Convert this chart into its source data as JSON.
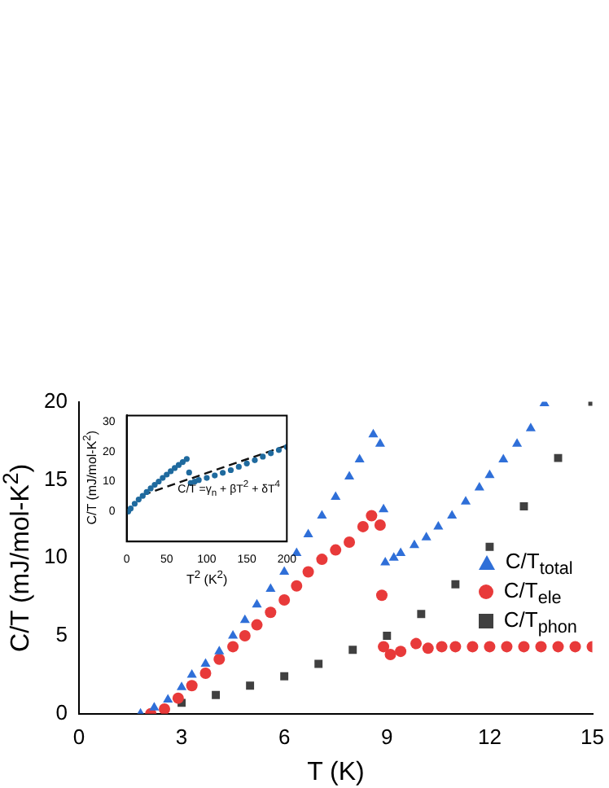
{
  "chart_data": [
    {
      "type": "scatter",
      "xlabel": "T (K)",
      "ylabel": "C/T (mJ/mol-K$^{2}$)",
      "xlim": [
        0,
        15
      ],
      "xticks": [
        0,
        3,
        6,
        9,
        12,
        15
      ],
      "ylim": [
        0,
        20
      ],
      "yticks": [
        0,
        5,
        10,
        15,
        20
      ],
      "legend": "right",
      "grid": false,
      "series": [
        {
          "name": "C/T$_{total}$",
          "color": "#2f6fd8",
          "marker": "triangle",
          "x": [
            1.8,
            2.2,
            2.6,
            3.0,
            3.3,
            3.7,
            4.1,
            4.5,
            4.85,
            5.2,
            5.6,
            6.0,
            6.36,
            6.7,
            7.1,
            7.5,
            7.9,
            8.2,
            8.6,
            8.8,
            8.9,
            8.95,
            9.2,
            9.4,
            9.8,
            10.15,
            10.5,
            10.9,
            11.3,
            11.7,
            12.0,
            12.4,
            12.8,
            13.2,
            13.6
          ],
          "values": [
            0,
            0.4,
            0.9,
            1.7,
            2.5,
            3.2,
            4.0,
            5.0,
            6.0,
            7.0,
            8.0,
            9.1,
            10.3,
            11.5,
            12.7,
            13.9,
            15.2,
            16.3,
            17.9,
            17.3,
            13.1,
            9.7,
            10.0,
            10.3,
            10.8,
            11.3,
            12.0,
            12.7,
            13.6,
            14.5,
            15.3,
            16.3,
            17.3,
            18.3,
            19.9
          ]
        },
        {
          "name": "C/T$_{ele}$",
          "color": "#e83a3a",
          "marker": "circle",
          "x": [
            2.1,
            2.5,
            2.9,
            3.3,
            3.7,
            4.1,
            4.5,
            4.85,
            5.2,
            5.6,
            6.0,
            6.36,
            6.7,
            7.1,
            7.5,
            7.9,
            8.3,
            8.55,
            8.8,
            8.85,
            8.9,
            9.1,
            9.4,
            9.85,
            10.2,
            10.6,
            11.0,
            11.5,
            12.0,
            12.5,
            13.0,
            13.5,
            14.0,
            14.5,
            15.0
          ],
          "values": [
            0,
            0.3,
            1.0,
            1.8,
            2.6,
            3.5,
            4.3,
            5.0,
            5.7,
            6.5,
            7.3,
            8.2,
            9.1,
            9.9,
            10.5,
            11.0,
            12.0,
            12.7,
            12.1,
            7.6,
            4.3,
            3.8,
            4.0,
            4.5,
            4.2,
            4.3,
            4.3,
            4.3,
            4.3,
            4.3,
            4.3,
            4.3,
            4.3,
            4.3,
            4.3
          ]
        },
        {
          "name": "C/T$_{phon}$",
          "color": "#404040",
          "marker": "square",
          "x": [
            3,
            4,
            5,
            6,
            7,
            8,
            9,
            10,
            11,
            12,
            13,
            14,
            15
          ],
          "values": [
            0.7,
            1.2,
            1.8,
            2.4,
            3.2,
            4.1,
            5.0,
            6.4,
            8.3,
            10.7,
            13.3,
            16.4,
            20.0
          ]
        }
      ]
    },
    {
      "type": "scatter",
      "xlabel": "T$^{2}$ (K$^{2}$)",
      "ylabel": "C/T (mJ/mol-K$^{2}$)",
      "xlim": [
        0,
        200
      ],
      "xticks": [
        0,
        50,
        100,
        150,
        200
      ],
      "ylim": [
        -10,
        32
      ],
      "yticks": [
        0,
        10,
        20,
        30
      ],
      "grid": false,
      "legend": false,
      "annotations": [
        "C/T =γ$_{n}$ + βT$^{2}$ + δT$^{4}$"
      ],
      "series": [
        {
          "color": "#1f6a9e",
          "marker": "circle",
          "x": [
            2,
            5,
            10,
            15,
            20,
            25,
            30,
            35,
            40,
            45,
            50,
            55,
            60,
            65,
            70,
            75,
            78,
            80,
            85,
            90,
            100,
            110,
            120,
            130,
            140,
            150,
            160,
            170,
            180,
            190,
            200
          ],
          "values": [
            0,
            1,
            2.6,
            4,
            5.2,
            6.5,
            7.7,
            8.9,
            10,
            11.2,
            12.3,
            13.4,
            14.5,
            15.5,
            16.5,
            17.5,
            13,
            9.5,
            10,
            10.5,
            11.2,
            12,
            12.9,
            13.8,
            14.9,
            16,
            17.1,
            18.3,
            19.4,
            20.5,
            21.5
          ]
        },
        {
          "type": "line",
          "color": "#111111",
          "marker": "none",
          "line_style": "dashed",
          "x": [
            20,
            200
          ],
          "values": [
            5.5,
            22
          ]
        }
      ]
    }
  ]
}
